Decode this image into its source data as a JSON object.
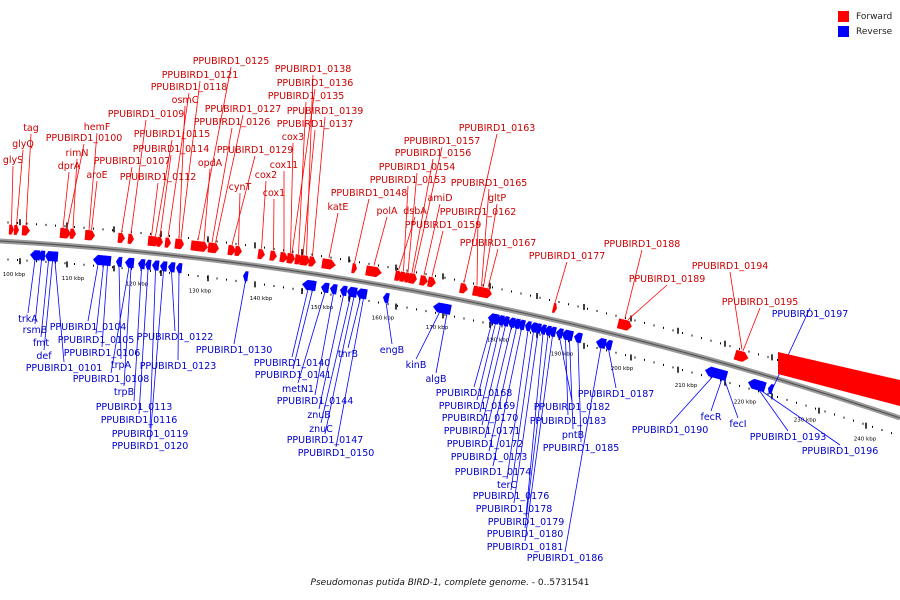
{
  "legend": {
    "forward": {
      "label": "Forward",
      "color": "#ff0000"
    },
    "reverse": {
      "label": "Reverse",
      "color": "#0000ff"
    }
  },
  "caption": {
    "organism": "Pseudomonas putida BIRD-1, complete genome.",
    "range": " - 0..5731541"
  },
  "scale_ticks": [
    "100 kbp",
    "110 kbp",
    "120 kbp",
    "130 kbp",
    "140 kbp",
    "150 kbp",
    "160 kbp",
    "170 kbp",
    "180 kbp",
    "190 kbp",
    "200 kbp",
    "210 kbp",
    "220 kbp",
    "230 kbp",
    "240 kbp"
  ],
  "forward_genes": [
    "tag",
    "glyQ",
    "glyS",
    "PPUBIRD1_0100",
    "rimN",
    "dprA",
    "hemF",
    "aroE",
    "PPUBIRD1_0107",
    "PPUBIRD1_0109",
    "PPUBIRD1_0112",
    "PPUBIRD1_0114",
    "PPUBIRD1_0115",
    "PPUBIRD1_0118",
    "osmC",
    "PPUBIRD1_0121",
    "PPUBIRD1_0125",
    "PPUBIRD1_0126",
    "PPUBIRD1_0127",
    "opdA",
    "cynT",
    "PPUBIRD1_0129",
    "cox2",
    "cox1",
    "cox11",
    "cox3",
    "PPUBIRD1_0135",
    "PPUBIRD1_0136",
    "PPUBIRD1_0137",
    "PPUBIRD1_0138",
    "PPUBIRD1_0139",
    "katE",
    "PPUBIRD1_0148",
    "polA",
    "dsbA",
    "PPUBIRD1_0153",
    "PPUBIRD1_0154",
    "PPUBIRD1_0156",
    "PPUBIRD1_0157",
    "amiD",
    "PPUBIRD1_0159",
    "PPUBIRD1_0163",
    "PPUBIRD1_0165",
    "gltP",
    "PPUBIRD1_0162",
    "PPUBIRD1_0167",
    "PPUBIRD1_0177",
    "PPUBIRD1_0188",
    "PPUBIRD1_0189",
    "PPUBIRD1_0194",
    "PPUBIRD1_0195"
  ],
  "reverse_genes": [
    "trkA",
    "rsmB",
    "fmt",
    "def",
    "PPUBIRD1_0101",
    "PPUBIRD1_0104",
    "PPUBIRD1_0105",
    "PPUBIRD1_0106",
    "trpA",
    "PPUBIRD1_0108",
    "trpB",
    "PPUBIRD1_0113",
    "PPUBIRD1_0116",
    "PPUBIRD1_0119",
    "PPUBIRD1_0120",
    "PPUBIRD1_0122",
    "PPUBIRD1_0123",
    "PPUBIRD1_0130",
    "PPUBIRD1_0140",
    "PPUBIRD1_0141",
    "metN1",
    "PPUBIRD1_0144",
    "znuB",
    "znuC",
    "PPUBIRD1_0147",
    "PPUBIRD1_0150",
    "thrB",
    "engB",
    "kinB",
    "algB",
    "PPUBIRD1_0168",
    "PPUBIRD1_0169",
    "PPUBIRD1_0170",
    "PPUBIRD1_0171",
    "PPUBIRD1_0172",
    "PPUBIRD1_0173",
    "PPUBIRD1_0174",
    "terC",
    "PPUBIRD1_0176",
    "PPUBIRD1_0178",
    "PPUBIRD1_0179",
    "PPUBIRD1_0180",
    "PPUBIRD1_0181",
    "PPUBIRD1_0182",
    "PPUBIRD1_0183",
    "pntB",
    "PPUBIRD1_0185",
    "PPUBIRD1_0186",
    "PPUBIRD1_0187",
    "PPUBIRD1_0190",
    "fecR",
    "fecI",
    "PPUBIRD1_0193",
    "PPUBIRD1_0196",
    "PPUBIRD1_0197"
  ]
}
